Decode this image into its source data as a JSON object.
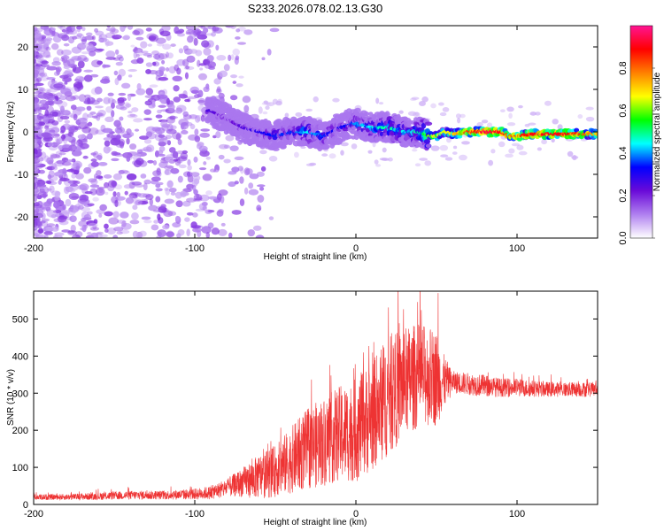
{
  "title": "S233.2026.078.02.13.G30",
  "chart_data": [
    {
      "type": "heatmap",
      "name": "spectrogram",
      "xlabel": "Height of straight line (km)",
      "ylabel": "Frequency (Hz)",
      "xlim": [
        -200,
        150
      ],
      "ylim": [
        -25,
        25
      ],
      "xticks": [
        -200,
        -100,
        0,
        100
      ],
      "yticks": [
        -20,
        -10,
        0,
        10,
        20
      ],
      "ridge": {
        "x": [
          -90,
          -80,
          -70,
          -60,
          -50,
          -40,
          -30,
          -20,
          -10,
          0,
          10,
          20,
          30,
          40,
          45,
          50,
          55,
          60,
          70,
          80,
          90,
          95,
          100,
          110,
          120,
          130,
          140,
          150
        ],
        "freq": [
          5,
          3,
          1,
          0,
          -1,
          0,
          0,
          -1,
          1,
          2,
          1,
          1,
          0,
          0,
          -1,
          -1,
          0,
          -0.5,
          0,
          0,
          0,
          -1,
          -1,
          -0.5,
          -0.5,
          -0.5,
          -0.5,
          -0.5
        ],
        "amplitude": [
          0.25,
          0.2,
          0.25,
          0.3,
          0.35,
          0.35,
          0.45,
          0.35,
          0.3,
          0.4,
          0.45,
          0.5,
          0.45,
          0.5,
          0.6,
          0.7,
          0.65,
          0.7,
          0.85,
          0.95,
          0.9,
          0.8,
          0.85,
          0.9,
          0.9,
          0.9,
          0.85,
          0.7
        ]
      },
      "colorbar": {
        "label": "Normalized spectral amplitude",
        "range": [
          0.0,
          1.0
        ],
        "ticks": [
          "0.0",
          "0.2",
          "0.4",
          "0.6",
          "0.8"
        ],
        "colors": [
          "#ffffff",
          "#b080f0",
          "#6a0ad8",
          "#0000ff",
          "#00ffff",
          "#00ff00",
          "#ffff00",
          "#ff8000",
          "#ff0000",
          "#ff1493"
        ]
      }
    },
    {
      "type": "line",
      "name": "snr",
      "xlabel": "Height of straight line (km)",
      "ylabel": "SNR (10 * v/v)",
      "xlim": [
        -200,
        150
      ],
      "ylim": [
        0,
        575
      ],
      "xticks": [
        -200,
        -100,
        0,
        100
      ],
      "yticks": [
        0,
        100,
        200,
        300,
        400,
        500
      ],
      "series": [
        {
          "name": "SNR",
          "color": "#ee3333",
          "x": [
            -200,
            -180,
            -160,
            -140,
            -120,
            -100,
            -90,
            -80,
            -70,
            -60,
            -50,
            -40,
            -30,
            -20,
            -10,
            0,
            10,
            20,
            30,
            40,
            50,
            55,
            60,
            70,
            80,
            90,
            100,
            110,
            120,
            130,
            140,
            150
          ],
          "y": [
            20,
            20,
            22,
            25,
            25,
            28,
            32,
            45,
            60,
            75,
            90,
            120,
            150,
            170,
            190,
            200,
            240,
            290,
            330,
            350,
            340,
            330,
            330,
            325,
            320,
            315,
            315,
            312,
            310,
            310,
            310,
            310
          ],
          "spread": [
            8,
            8,
            10,
            12,
            12,
            15,
            18,
            25,
            40,
            60,
            70,
            90,
            110,
            120,
            130,
            140,
            150,
            160,
            150,
            140,
            130,
            70,
            30,
            30,
            30,
            25,
            25,
            22,
            20,
            20,
            20,
            20
          ],
          "peak": {
            "x": 51,
            "y": 570
          }
        }
      ]
    }
  ]
}
